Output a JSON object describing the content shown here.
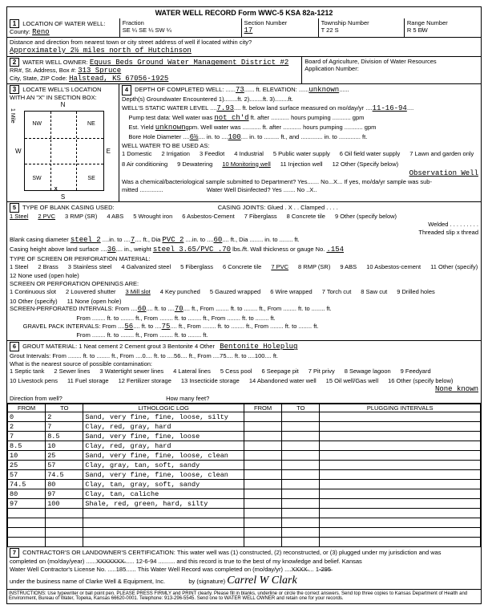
{
  "header": {
    "title": "WATER WELL RECORD    Form WWC-5    KSA 82a-1212",
    "county_label": "County:",
    "county": "Reno",
    "fraction_label": "Fraction",
    "fraction": "SE ¼  SE ¼  SW ¼",
    "section_label": "Section Number",
    "section": "17",
    "township_label": "Township Number",
    "township": "T   22   S",
    "range_label": "Range Number",
    "range": "R  5  E̸W",
    "distance_label": "Distance and direction from nearest town or city street address of well if located within city?",
    "distance": "Approximately 2½ miles north of Hutchinson"
  },
  "s1": {
    "num": "1",
    "title": "LOCATION OF WATER WELL:"
  },
  "s2": {
    "num": "2",
    "title": "WATER WELL OWNER:",
    "owner": "Equus Beds Ground Water Management District #2",
    "addr_label": "RR#, St. Address, Box #:",
    "addr": "313 Spruce",
    "city_label": "City, State, ZIP Code:",
    "city": "Halstead, KS  67056-1925",
    "board": "Board of Agriculture, Division of Water Resources",
    "appnum": "Application Number:"
  },
  "s3": {
    "num": "3",
    "title": "LOCATE WELL'S LOCATION WITH AN \"X\" IN SECTION BOX:",
    "n": "N",
    "s": "S",
    "e": "E",
    "w": "W",
    "nw": "NW",
    "ne": "NE",
    "sw": "SW",
    "se": "SE"
  },
  "s4": {
    "num": "4",
    "title": "DEPTH OF COMPLETED WELL:",
    "depth": "73",
    "elev_label": "ft. ELEVATION:",
    "elev": "unknown",
    "gw_label": "Depth(s) Groundwater Encountered",
    "gw1": "1)",
    "gw2": "2)",
    "gw3": "3)",
    "static_label": "WELL'S STATIC WATER LEVEL",
    "static": "7.93",
    "static_suffix": "ft. below land surface measured on mo/day/yr",
    "static_date": "11-16-94",
    "pump_label": "Pump test data:  Well water was",
    "pump_val": "not ch'd",
    "pump_suffix": "ft. after ........... hours pumping ........... gpm",
    "yield_label": "Est. Yield",
    "yield": "unknown",
    "yield_suffix": "gpm.  Well water was ........... ft. after ........... hours pumping ........... gpm",
    "bore_label": "Bore Hole Diameter",
    "bore": "6½",
    "bore_to": "100",
    "bore_suffix": "in. to ......... ft., and ............. in. to ............. ft.",
    "use_label": "WELL WATER TO BE USED AS:",
    "uses": [
      "1 Domestic",
      "2 Irrigation",
      "3 Feedlot",
      "4 Industrial",
      "5 Public water supply",
      "6 Oil field water supply",
      "7 Lawn and garden only",
      "8 Air conditioning",
      "9 Dewatering",
      "10 Monitoring well",
      "11 Injection well",
      "12 Other (Specify below)"
    ],
    "use_other": "Observation Well",
    "chem_label": "Was a chemical/bacteriological sample submitted to Department? Yes....... No...X... If yes, mo/da/yr sample was sub-",
    "chem2": "mitted ..............",
    "disinf": "Water Well Disinfected?    Yes .......   No ..X.."
  },
  "s5": {
    "num": "5",
    "title": "TYPE OF BLANK CASING USED:",
    "types": [
      "1 Steel",
      "2 PVC",
      "3 RMP (SR)",
      "4 ABS",
      "5 Wrought iron",
      "6 Asbestos-Cement",
      "7 Fiberglass",
      "8 Concrete tile",
      "9 Other (specify below)"
    ],
    "joints_label": "CASING JOINTS: Glued . X . . Clamped . . . .",
    "welded": "Welded . . . . . . . . .",
    "threaded": "Threaded slip x thread",
    "blank_label": "Blank casing diameter",
    "blank_dia": "steel 2",
    "blank_to": "7",
    "blank_pvc": "PVC 2",
    "blank_to2": "60",
    "height_label": "Casing height above land surface",
    "height": "36",
    "weight": "steel 3.65/PVC .70",
    "gauge": ".154",
    "perf_title": "TYPE OF SCREEN OR PERFORATION MATERIAL:",
    "perf_opts": [
      "1 Steel",
      "2 Brass",
      "3 Stainless steel",
      "4 Galvanized steel",
      "5 Fiberglass",
      "6 Concrete tile",
      "7 PVC",
      "8 RMP (SR)",
      "9 ABS",
      "10 Asbestos-cement",
      "11 Other (specify)",
      "12 None used (open hole)"
    ],
    "open_title": "SCREEN OR PERFORATION OPENINGS ARE:",
    "open_opts": [
      "1 Continuous slot",
      "2 Louvered shutter",
      "3 Mill slot",
      "4 Key punched",
      "5 Gauzed wrapped",
      "6 Wire wrapped",
      "7 Torch cut",
      "8 Saw cut",
      "9 Drilled holes",
      "10 Other (specify)",
      "11 None (open hole)"
    ],
    "screen_label": "SCREEN-PERFORATED INTERVALS:  From",
    "screen_from": "60",
    "screen_to": "70",
    "gravel_label": "GRAVEL PACK INTERVALS:  From",
    "gravel_from": "56",
    "gravel_to": "75"
  },
  "s6": {
    "num": "6",
    "title": "GROUT MATERIAL:",
    "opts": [
      "1 Neat cement",
      "2 Cement grout",
      "3 Bentonite",
      "4 Other"
    ],
    "other": "Bentonite Holeplug",
    "intervals_label": "Grout Intervals:  From ........ ft. to ........ ft.,  From ....0.... ft. to ....56.... ft.,  From ....75.... ft. to ....100.... ft.",
    "contam_label": "What is the nearest source of possible contamination:",
    "contam_opts": [
      "1 Septic tank",
      "2 Sewer lines",
      "3 Watertight sewer lines",
      "4 Lateral lines",
      "5 Cess pool",
      "6 Seepage pit",
      "7 Pit privy",
      "8 Sewage lagoon",
      "9 Feedyard",
      "10 Livestock pens",
      "11 Fuel storage",
      "12 Fertilizer storage",
      "13 Insecticide storage",
      "14 Abandoned water well",
      "15 Oil well/Gas well",
      "16 Other (specify below)"
    ],
    "contam_other": "None known",
    "dir_label": "Direction from well?",
    "feet_label": "How many feet?"
  },
  "log": {
    "headers": [
      "FROM",
      "TO",
      "LITHOLOGIC LOG",
      "FROM",
      "TO",
      "PLUGGING INTERVALS"
    ],
    "rows": [
      [
        "0",
        "2",
        "Sand, very fine, fine, loose, silty",
        "",
        "",
        ""
      ],
      [
        "2",
        "7",
        "Clay, red, gray, hard",
        "",
        "",
        ""
      ],
      [
        "7",
        "8.5",
        "Sand, very fine, fine, loose",
        "",
        "",
        ""
      ],
      [
        "8.5",
        "10",
        "Clay, red, gray, hard",
        "",
        "",
        ""
      ],
      [
        "10",
        "25",
        "Sand, very fine, fine, loose, clean",
        "",
        "",
        ""
      ],
      [
        "25",
        "57",
        "Clay, gray, tan, soft, sandy",
        "",
        "",
        ""
      ],
      [
        "57",
        "74.5",
        "Sand, very fine, fine, loose, clean",
        "",
        "",
        ""
      ],
      [
        "74.5",
        "80",
        "Clay, tan, gray, soft, sandy",
        "",
        "",
        ""
      ],
      [
        "80",
        "97",
        "Clay, tan, caliche",
        "",
        "",
        ""
      ],
      [
        "97",
        "100",
        "Shale, red, green, hard, silty",
        "",
        "",
        ""
      ]
    ]
  },
  "s7": {
    "num": "7",
    "cert": "CONTRACTOR'S OR LANDOWNER'S CERTIFICATION: This water well was (1) constructed, (2) reconstructed, or (3) plugged under my jurisdiction and was",
    "completed": "completed on (mo/day/year) ......X̶X̶X̶X̶X̶X̶X̶...... 12-6-94 .......... and this record is true to the best of my knowledge and belief. Kansas",
    "license": "Water Well Contractor's License No. .....185...... This Water Well Record was completed on (mo/day/yr) ....X̶X̶X̶X̶.... 1-̶2̶9̶5̶",
    "business": "under the business name of  Clarke Well & Equipment, Inc.",
    "sig_label": "by (signature)",
    "sig": "Carrel W Clark"
  },
  "instructions": "INSTRUCTIONS: Use typewriter or ball point pen. PLEASE PRESS FIRMLY and PRINT clearly. Please fill in blanks, underline or circle the correct answers. Send top three copies to Kansas Department of Health and Environment, Bureau of Water, Topeka, Kansas 66620-0001. Telephone: 913-296-5545. Send one to WATER WELL OWNER and retain one for your records."
}
